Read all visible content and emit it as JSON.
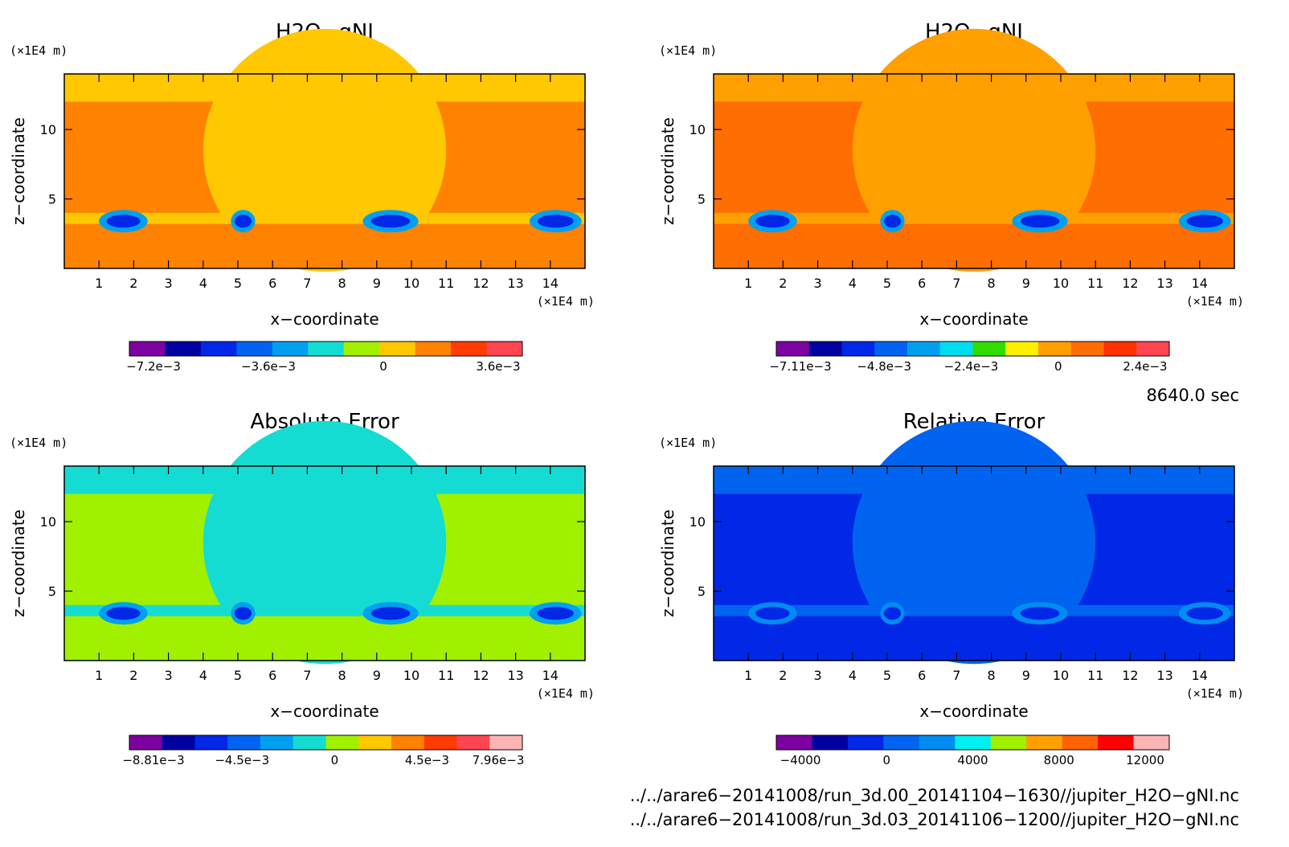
{
  "chart_data": [
    {
      "type": "heatmap",
      "title": "H2O−gNI",
      "xlabel": "x−coordinate",
      "ylabel": "z−coordinate",
      "x_unit": "(×1E4 m)",
      "y_unit": "(×1E4 m)",
      "x_ticks": [
        "1",
        "2",
        "3",
        "4",
        "5",
        "6",
        "7",
        "8",
        "9",
        "10",
        "11",
        "12",
        "13",
        "14"
      ],
      "y_ticks": [
        "5",
        "10"
      ],
      "xlim": [
        0,
        15
      ],
      "ylim": [
        0,
        14
      ],
      "colorbar": {
        "colors": [
          "#7d00a0",
          "#0000a0",
          "#0028e6",
          "#0064f0",
          "#00a0f0",
          "#14dcd2",
          "#a0f000",
          "#ffc800",
          "#ff8200",
          "#ff3c00",
          "#ff4650"
        ],
        "tick_labels": [
          "−7.2e−3",
          "−3.6e−3",
          "0",
          "3.6e−3"
        ],
        "tick_values": [
          -0.0072,
          -0.0036,
          0,
          0.0036
        ]
      }
    },
    {
      "type": "heatmap",
      "title": "H2O−gNI",
      "xlabel": "x−coordinate",
      "ylabel": "z−coordinate",
      "x_unit": "(×1E4 m)",
      "y_unit": "(×1E4 m)",
      "x_ticks": [
        "1",
        "2",
        "3",
        "4",
        "5",
        "6",
        "7",
        "8",
        "9",
        "10",
        "11",
        "12",
        "13",
        "14"
      ],
      "y_ticks": [
        "5",
        "10"
      ],
      "xlim": [
        0,
        15
      ],
      "ylim": [
        0,
        14
      ],
      "colorbar": {
        "colors": [
          "#7d00a0",
          "#0000a0",
          "#0028e6",
          "#0064f0",
          "#00a0f0",
          "#00dcf0",
          "#32dc00",
          "#fff000",
          "#ffa000",
          "#ff6e00",
          "#ff3200",
          "#ff4650"
        ],
        "tick_labels": [
          "−7.11e−3",
          "−4.8e−3",
          "−2.4e−3",
          "0",
          "2.4e−3"
        ],
        "tick_values": [
          -0.00711,
          -0.0048,
          -0.0024,
          0,
          0.0024
        ]
      }
    },
    {
      "type": "heatmap",
      "title": "Absolute Error",
      "xlabel": "x−coordinate",
      "ylabel": "z−coordinate",
      "x_unit": "(×1E4 m)",
      "y_unit": "(×1E4 m)",
      "x_ticks": [
        "1",
        "2",
        "3",
        "4",
        "5",
        "6",
        "7",
        "8",
        "9",
        "10",
        "11",
        "12",
        "13",
        "14"
      ],
      "y_ticks": [
        "5",
        "10"
      ],
      "xlim": [
        0,
        15
      ],
      "ylim": [
        0,
        14
      ],
      "colorbar": {
        "colors": [
          "#7d00a0",
          "#0000a0",
          "#0028e6",
          "#0064f0",
          "#00a0f0",
          "#14dcd2",
          "#a0f000",
          "#ffc800",
          "#ff8200",
          "#ff3c00",
          "#ff4650",
          "#ffb4b4"
        ],
        "tick_labels": [
          "−8.81e−3",
          "−4.5e−3",
          "0",
          "4.5e−3",
          "7.96e−3"
        ],
        "tick_values": [
          -0.00881,
          -0.0045,
          0,
          0.0045,
          0.00796
        ]
      }
    },
    {
      "type": "heatmap",
      "title": "Relative Error",
      "xlabel": "x−coordinate",
      "ylabel": "z−coordinate",
      "x_unit": "(×1E4 m)",
      "y_unit": "(×1E4 m)",
      "x_ticks": [
        "1",
        "2",
        "3",
        "4",
        "5",
        "6",
        "7",
        "8",
        "9",
        "10",
        "11",
        "12",
        "13",
        "14"
      ],
      "y_ticks": [
        "5",
        "10"
      ],
      "xlim": [
        0,
        15
      ],
      "ylim": [
        0,
        14
      ],
      "colorbar": {
        "colors": [
          "#7d00a0",
          "#0000a0",
          "#0028e6",
          "#0064f0",
          "#008cf0",
          "#00f0f0",
          "#a0f000",
          "#ffa000",
          "#ff6400",
          "#ff0000",
          "#ffb4b4"
        ],
        "tick_labels": [
          "−4000",
          "0",
          "4000",
          "8000",
          "12000"
        ],
        "tick_values": [
          -4000,
          0,
          4000,
          8000,
          12000
        ]
      }
    }
  ],
  "time_label": "8640.0 sec",
  "files": [
    "../../arare6−20141008/run_3d.00_20141104−1630//jupiter_H2O−gNI.nc",
    "../../arare6−20141008/run_3d.03_20141106−1200//jupiter_H2O−gNI.nc"
  ],
  "colors": {
    "tl_background": "#ffc800",
    "tl_band": "#ff8200",
    "tr_background": "#ffa000",
    "tr_band": "#ff6e00",
    "bl_background": "#14dcd2",
    "bl_band": "#a0f000",
    "br_background": "#0064f0",
    "br_band": "#0028e6"
  }
}
